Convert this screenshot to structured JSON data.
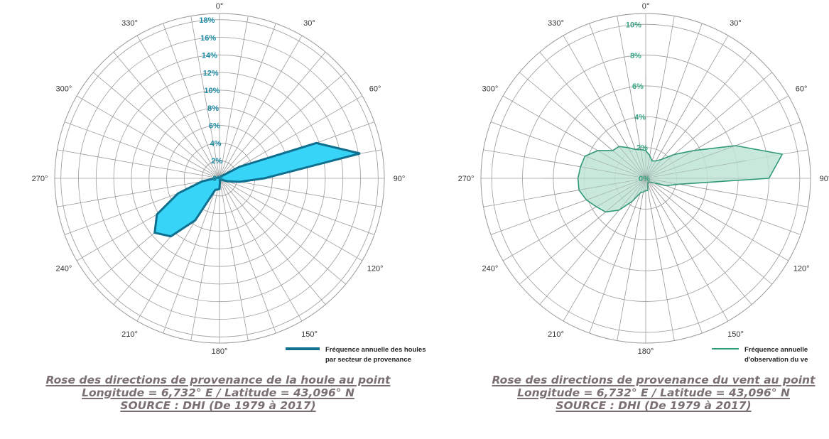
{
  "chart_data": [
    {
      "type": "radar",
      "title": "",
      "direction_labels": [
        "0°",
        "30°",
        "60°",
        "90°",
        "120°",
        "150°",
        "180°",
        "210°",
        "240°",
        "270°",
        "300°",
        "330°"
      ],
      "radial_tick_labels": [
        "0%",
        "2%",
        "4%",
        "6%",
        "8%",
        "10%",
        "12%",
        "14%",
        "16%",
        "18%"
      ],
      "radial_max": 18,
      "sector_step_deg": 10,
      "series": [
        {
          "name": "Fréquence annuelle des houles par secteur de provenance",
          "color": "#0e6f8e",
          "fill": "#38d4f7",
          "directions": [
            0,
            10,
            20,
            30,
            40,
            50,
            60,
            70,
            80,
            90,
            100,
            110,
            120,
            130,
            140,
            150,
            160,
            170,
            180,
            190,
            200,
            210,
            220,
            230,
            240,
            250,
            260,
            270,
            280,
            290,
            300,
            310,
            320,
            330,
            340,
            350
          ],
          "values": [
            0.0,
            0.0,
            0.0,
            0.0,
            0.3,
            0.5,
            2.6,
            11.7,
            16.2,
            5.1,
            2.3,
            1.0,
            0.4,
            0.3,
            0.2,
            0.2,
            0.2,
            0.3,
            1.2,
            1.3,
            1.4,
            5.5,
            8.6,
            9.6,
            8.2,
            5.0,
            2.0,
            0.5,
            0.3,
            0.2,
            0.1,
            0.0,
            0.0,
            0.0,
            0.0,
            0.0
          ]
        }
      ],
      "legend": [
        "Fréquence annuelle des houles",
        "par secteur de provenance"
      ],
      "caption": [
        "Rose des directions de provenance de la houle au point",
        "Longitude = 6,732° E / Latitude = 43,096° N",
        "SOURCE : DHI (De 1979 à 2017)"
      ]
    },
    {
      "type": "radar",
      "title": "",
      "direction_labels": [
        "0°",
        "30°",
        "60°",
        "90°",
        "120°",
        "150°",
        "180°",
        "210°",
        "240°",
        "270°",
        "300°",
        "330°"
      ],
      "radial_tick_labels": [
        "0%",
        "2%",
        "4%",
        "6%",
        "8%",
        "10%"
      ],
      "radial_max": 10,
      "sector_step_deg": 10,
      "series": [
        {
          "name": "Fréquence annuelle d'observation du ve",
          "color": "#2f9a78",
          "fill": "#bfe4d6",
          "directions": [
            0,
            10,
            20,
            30,
            40,
            50,
            60,
            70,
            80,
            90,
            100,
            110,
            120,
            130,
            140,
            150,
            160,
            170,
            180,
            190,
            200,
            210,
            220,
            230,
            240,
            250,
            260,
            270,
            280,
            290,
            300,
            310,
            320,
            330,
            340,
            350
          ],
          "values": [
            1.8,
            1.5,
            1.2,
            1.3,
            1.6,
            2.4,
            3.6,
            6.2,
            9.0,
            8.0,
            2.2,
            1.4,
            0.6,
            0.4,
            0.3,
            0.3,
            0.4,
            0.8,
            0.8,
            0.9,
            1.0,
            1.7,
            2.7,
            3.4,
            3.7,
            4.1,
            4.4,
            4.4,
            4.3,
            4.2,
            3.6,
            2.8,
            2.7,
            2.3,
            2.0,
            1.9
          ]
        }
      ],
      "legend": [
        "Fréquence annuelle",
        "d'observation du ve"
      ],
      "caption": [
        "Rose des directions de provenance du vent au point",
        "Longitude = 6,732° E / Latitude = 43,096° N",
        "SOURCE : DHI (De 1979 à 2017)"
      ]
    }
  ]
}
